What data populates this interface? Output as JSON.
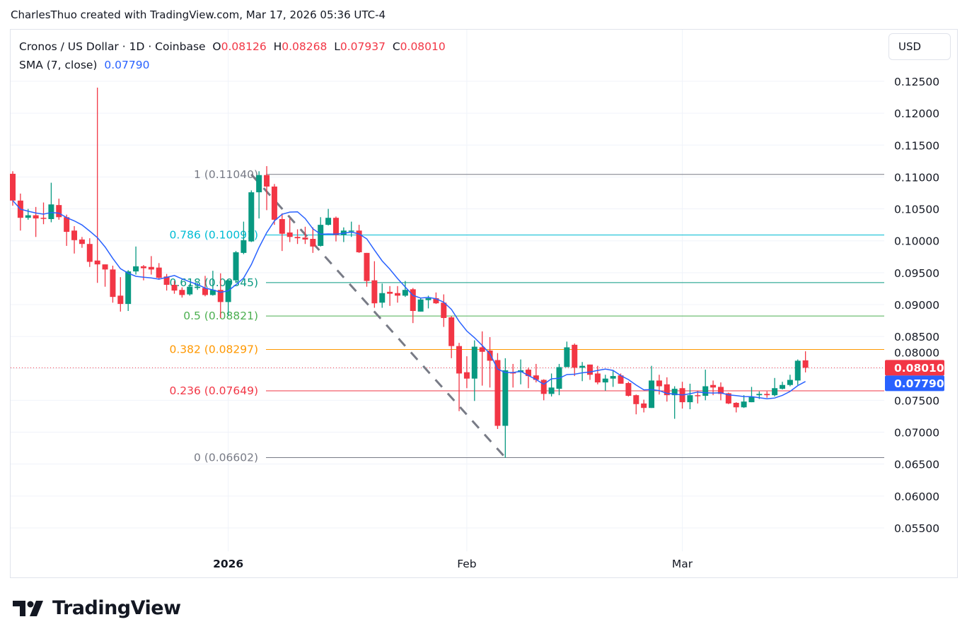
{
  "credit": "CharlesThuo created with TradingView.com, Mar 17, 2026 05:36 UTC-4",
  "legend": {
    "symbol": "Cronos / US Dollar · 1D · Coinbase",
    "o_label": "O",
    "o": "0.08126",
    "h_label": "H",
    "h": "0.08268",
    "l_label": "L",
    "l": "0.07937",
    "c_label": "C",
    "c": "0.08010",
    "sma_label": "SMA (7, close)",
    "sma_value": "0.07790"
  },
  "currency_button": "USD",
  "logo_text": "TradingView",
  "colors": {
    "up": "#089981",
    "down": "#f23645",
    "sma": "#2962ff",
    "trend": "#787b86"
  },
  "chart_data": {
    "type": "candlestick",
    "ylim": [
      0.0505,
      0.1285
    ],
    "y_ticks": [
      "0.12500",
      "0.12000",
      "0.11500",
      "0.11000",
      "0.10500",
      "0.10000",
      "0.09500",
      "0.09000",
      "0.08500",
      "0.08000",
      "0.07500",
      "0.07000",
      "0.06500",
      "0.06000",
      "0.05500"
    ],
    "x_ticks": [
      {
        "date": "2026-01-01",
        "label": "2026",
        "bold": true
      },
      {
        "date": "2026-02-01",
        "label": "Feb",
        "bold": false
      },
      {
        "date": "2026-03-01",
        "label": "Mar",
        "bold": false
      }
    ],
    "grid": true,
    "last_price_label": "0.08010",
    "sma_price_label": "0.07790",
    "sma_period": 7,
    "trend_line": {
      "from": [
        "2026-01-04",
        0.1104
      ],
      "to": [
        "2026-02-06",
        0.06602
      ]
    },
    "fib_levels": [
      {
        "level": 1,
        "price": 0.1104,
        "label": "1 (0.11040)",
        "color": "#787b86"
      },
      {
        "level": 0.786,
        "price": 0.10091,
        "label": "0.786 (0.10091)",
        "color": "#00bcd4"
      },
      {
        "level": 0.618,
        "price": 0.09345,
        "label": "0.618 (0.09345)",
        "color": "#089981"
      },
      {
        "level": 0.5,
        "price": 0.08821,
        "label": "0.5 (0.08821)",
        "color": "#4caf50"
      },
      {
        "level": 0.382,
        "price": 0.08297,
        "label": "0.382 (0.08297)",
        "color": "#ff9800"
      },
      {
        "level": 0.236,
        "price": 0.07649,
        "label": "0.236 (0.07649)",
        "color": "#f23645"
      },
      {
        "level": 0,
        "price": 0.06602,
        "label": "0 (0.06602)",
        "color": "#787b86"
      }
    ],
    "candles_columns": [
      "date",
      "open",
      "high",
      "low",
      "close"
    ],
    "candles": [
      [
        "2025-12-04",
        0.1105,
        0.1109,
        0.1055,
        0.1063
      ],
      [
        "2025-12-05",
        0.1063,
        0.1074,
        0.1016,
        0.1036
      ],
      [
        "2025-12-06",
        0.1036,
        0.105,
        0.1033,
        0.104
      ],
      [
        "2025-12-07",
        0.104,
        0.1053,
        0.1006,
        0.1035
      ],
      [
        "2025-12-08",
        0.1036,
        0.106,
        0.1026,
        0.1035
      ],
      [
        "2025-12-09",
        0.1034,
        0.1091,
        0.1029,
        0.1057
      ],
      [
        "2025-12-10",
        0.1056,
        0.1066,
        0.1033,
        0.1037
      ],
      [
        "2025-12-11",
        0.1037,
        0.1041,
        0.0992,
        0.1014
      ],
      [
        "2025-12-12",
        0.1016,
        0.1023,
        0.098,
        0.1001
      ],
      [
        "2025-12-13",
        0.1002,
        0.1006,
        0.0989,
        0.0995
      ],
      [
        "2025-12-14",
        0.0995,
        0.1004,
        0.0959,
        0.0967
      ],
      [
        "2025-12-15",
        0.0969,
        0.124,
        0.0934,
        0.0963
      ],
      [
        "2025-12-16",
        0.0963,
        0.0963,
        0.0928,
        0.0955
      ],
      [
        "2025-12-17",
        0.0955,
        0.0961,
        0.0903,
        0.0912
      ],
      [
        "2025-12-18",
        0.0914,
        0.0943,
        0.0889,
        0.0901
      ],
      [
        "2025-12-19",
        0.0901,
        0.0954,
        0.089,
        0.0952
      ],
      [
        "2025-12-20",
        0.0952,
        0.0991,
        0.0947,
        0.096
      ],
      [
        "2025-12-21",
        0.096,
        0.0962,
        0.0938,
        0.0957
      ],
      [
        "2025-12-22",
        0.0959,
        0.0976,
        0.0947,
        0.0955
      ],
      [
        "2025-12-23",
        0.0958,
        0.0965,
        0.0939,
        0.0942
      ],
      [
        "2025-12-24",
        0.0944,
        0.0948,
        0.0922,
        0.0931
      ],
      [
        "2025-12-25",
        0.0931,
        0.0937,
        0.0917,
        0.0922
      ],
      [
        "2025-12-26",
        0.0923,
        0.0927,
        0.0911,
        0.0915
      ],
      [
        "2025-12-27",
        0.0916,
        0.0932,
        0.0914,
        0.0928
      ],
      [
        "2025-12-28",
        0.0926,
        0.0934,
        0.0923,
        0.0928
      ],
      [
        "2025-12-29",
        0.0926,
        0.0945,
        0.0913,
        0.0915
      ],
      [
        "2025-12-30",
        0.0915,
        0.0953,
        0.0914,
        0.0923
      ],
      [
        "2025-12-31",
        0.0923,
        0.0949,
        0.0879,
        0.0904
      ],
      [
        "2026-01-01",
        0.0904,
        0.0939,
        0.0882,
        0.0938
      ],
      [
        "2026-01-02",
        0.0938,
        0.0984,
        0.0934,
        0.0982
      ],
      [
        "2026-01-03",
        0.0981,
        0.103,
        0.0979,
        0.1001
      ],
      [
        "2026-01-04",
        0.0999,
        0.1079,
        0.0998,
        0.1076
      ],
      [
        "2026-01-05",
        0.1076,
        0.1109,
        0.1035,
        0.1103
      ],
      [
        "2026-01-06",
        0.1103,
        0.1117,
        0.1048,
        0.1085
      ],
      [
        "2026-01-07",
        0.1085,
        0.1089,
        0.1025,
        0.1033
      ],
      [
        "2026-01-08",
        0.1034,
        0.1043,
        0.0984,
        0.1011
      ],
      [
        "2026-01-09",
        0.1013,
        0.1035,
        0.0998,
        0.1006
      ],
      [
        "2026-01-10",
        0.1006,
        0.1018,
        0.0995,
        0.1004
      ],
      [
        "2026-01-11",
        0.1005,
        0.1022,
        0.0995,
        0.1002
      ],
      [
        "2026-01-12",
        0.1003,
        0.1021,
        0.0981,
        0.0991
      ],
      [
        "2026-01-13",
        0.0992,
        0.1037,
        0.0991,
        0.1025
      ],
      [
        "2026-01-14",
        0.1025,
        0.105,
        0.1024,
        0.1036
      ],
      [
        "2026-01-15",
        0.1036,
        0.1038,
        0.0999,
        0.1009
      ],
      [
        "2026-01-16",
        0.1009,
        0.1021,
        0.0998,
        0.1016
      ],
      [
        "2026-01-17",
        0.1015,
        0.103,
        0.1006,
        0.1016
      ],
      [
        "2026-01-18",
        0.1016,
        0.1025,
        0.0981,
        0.0982
      ],
      [
        "2026-01-19",
        0.0981,
        0.0981,
        0.0928,
        0.0937
      ],
      [
        "2026-01-20",
        0.0938,
        0.0968,
        0.0895,
        0.0902
      ],
      [
        "2026-01-21",
        0.0903,
        0.0933,
        0.0895,
        0.0918
      ],
      [
        "2026-01-22",
        0.092,
        0.0929,
        0.0898,
        0.0917
      ],
      [
        "2026-01-23",
        0.0918,
        0.0929,
        0.0903,
        0.0914
      ],
      [
        "2026-01-24",
        0.0914,
        0.0937,
        0.0912,
        0.0923
      ],
      [
        "2026-01-25",
        0.0924,
        0.0926,
        0.0871,
        0.089
      ],
      [
        "2026-01-26",
        0.0889,
        0.0911,
        0.0889,
        0.0908
      ],
      [
        "2026-01-27",
        0.0907,
        0.0914,
        0.0894,
        0.091
      ],
      [
        "2026-01-28",
        0.091,
        0.0919,
        0.0901,
        0.0902
      ],
      [
        "2026-01-29",
        0.0903,
        0.0916,
        0.0865,
        0.0879
      ],
      [
        "2026-01-30",
        0.088,
        0.0882,
        0.0816,
        0.0835
      ],
      [
        "2026-01-31",
        0.0835,
        0.084,
        0.0733,
        0.0792
      ],
      [
        "2026-02-01",
        0.0794,
        0.0819,
        0.0769,
        0.0784
      ],
      [
        "2026-02-02",
        0.0784,
        0.0844,
        0.0749,
        0.0834
      ],
      [
        "2026-02-03",
        0.0833,
        0.0858,
        0.0773,
        0.0826
      ],
      [
        "2026-02-04",
        0.0828,
        0.0849,
        0.077,
        0.0812
      ],
      [
        "2026-02-05",
        0.0813,
        0.0824,
        0.0705,
        0.071
      ],
      [
        "2026-02-06",
        0.071,
        0.0816,
        0.066,
        0.0797
      ],
      [
        "2026-02-07",
        0.0794,
        0.0807,
        0.077,
        0.0792
      ],
      [
        "2026-02-08",
        0.0794,
        0.0814,
        0.0775,
        0.0797
      ],
      [
        "2026-02-09",
        0.0798,
        0.0801,
        0.0769,
        0.0788
      ],
      [
        "2026-02-10",
        0.0789,
        0.0807,
        0.0778,
        0.0782
      ],
      [
        "2026-02-11",
        0.0782,
        0.0783,
        0.075,
        0.076
      ],
      [
        "2026-02-12",
        0.076,
        0.0792,
        0.0756,
        0.077
      ],
      [
        "2026-02-13",
        0.0768,
        0.0807,
        0.0758,
        0.0802
      ],
      [
        "2026-02-14",
        0.0802,
        0.0842,
        0.0802,
        0.0833
      ],
      [
        "2026-02-15",
        0.0837,
        0.0839,
        0.0788,
        0.0801
      ],
      [
        "2026-02-16",
        0.0801,
        0.081,
        0.078,
        0.0804
      ],
      [
        "2026-02-17",
        0.0806,
        0.0806,
        0.0782,
        0.079
      ],
      [
        "2026-02-18",
        0.0792,
        0.0804,
        0.0775,
        0.0778
      ],
      [
        "2026-02-19",
        0.0778,
        0.079,
        0.0765,
        0.0784
      ],
      [
        "2026-02-20",
        0.0784,
        0.0796,
        0.0771,
        0.0788
      ],
      [
        "2026-02-21",
        0.0789,
        0.0792,
        0.0776,
        0.0776
      ],
      [
        "2026-02-22",
        0.0777,
        0.0779,
        0.0756,
        0.0757
      ],
      [
        "2026-02-23",
        0.0758,
        0.0759,
        0.0728,
        0.0744
      ],
      [
        "2026-02-24",
        0.0745,
        0.0751,
        0.0731,
        0.0738
      ],
      [
        "2026-02-25",
        0.0738,
        0.0804,
        0.0738,
        0.0781
      ],
      [
        "2026-02-26",
        0.0781,
        0.079,
        0.0759,
        0.0772
      ],
      [
        "2026-02-27",
        0.0775,
        0.0786,
        0.0748,
        0.0758
      ],
      [
        "2026-02-28",
        0.0758,
        0.0772,
        0.0721,
        0.0768
      ],
      [
        "2026-03-01",
        0.0769,
        0.0779,
        0.0737,
        0.0747
      ],
      [
        "2026-03-02",
        0.0747,
        0.0776,
        0.0736,
        0.0758
      ],
      [
        "2026-03-03",
        0.0758,
        0.0765,
        0.0745,
        0.0757
      ],
      [
        "2026-03-04",
        0.0757,
        0.0798,
        0.075,
        0.0772
      ],
      [
        "2026-03-05",
        0.0774,
        0.0781,
        0.0758,
        0.077
      ],
      [
        "2026-03-06",
        0.0771,
        0.0778,
        0.075,
        0.076
      ],
      [
        "2026-03-07",
        0.0761,
        0.0762,
        0.0744,
        0.0745
      ],
      [
        "2026-03-08",
        0.0746,
        0.0747,
        0.0731,
        0.0739
      ],
      [
        "2026-03-09",
        0.0739,
        0.0758,
        0.0738,
        0.0748
      ],
      [
        "2026-03-10",
        0.0747,
        0.0771,
        0.0747,
        0.0756
      ],
      [
        "2026-03-11",
        0.0758,
        0.0764,
        0.0752,
        0.076
      ],
      [
        "2026-03-12",
        0.076,
        0.0764,
        0.0754,
        0.0758
      ],
      [
        "2026-03-13",
        0.0758,
        0.0785,
        0.0756,
        0.0769
      ],
      [
        "2026-03-14",
        0.0768,
        0.0779,
        0.0767,
        0.0774
      ],
      [
        "2026-03-15",
        0.0774,
        0.079,
        0.0772,
        0.0782
      ],
      [
        "2026-03-16",
        0.0781,
        0.0814,
        0.0774,
        0.0812
      ],
      [
        "2026-03-17",
        0.08126,
        0.08268,
        0.07937,
        0.0801
      ]
    ]
  }
}
